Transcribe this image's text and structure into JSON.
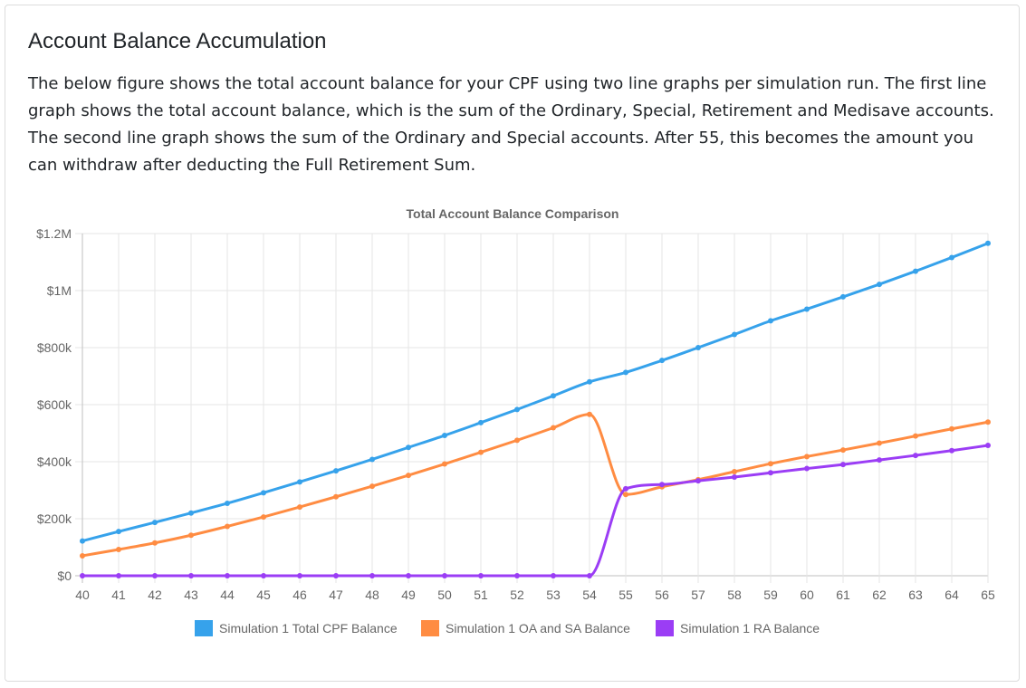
{
  "card": {
    "title": "Account Balance Accumulation",
    "description": "The below figure shows the total account balance for your CPF using two line graphs per simulation run. The first line graph shows the total account balance, which is the sum of the Ordinary, Special, Retirement and Medisave accounts. The second line graph shows the sum of the Ordinary and Special accounts. After 55, this becomes the amount you can withdraw after deducting the Full Retirement Sum."
  },
  "chart_data": {
    "type": "line",
    "title": "Total Account Balance Comparison",
    "xlabel": "",
    "ylabel": "",
    "x": [
      40,
      41,
      42,
      43,
      44,
      45,
      46,
      47,
      48,
      49,
      50,
      51,
      52,
      53,
      54,
      55,
      56,
      57,
      58,
      59,
      60,
      61,
      62,
      63,
      64,
      65
    ],
    "ylim": [
      0,
      1200000
    ],
    "yticks": [
      0,
      200000,
      400000,
      600000,
      800000,
      1000000,
      1200000
    ],
    "ytick_labels": [
      "$0",
      "$200k",
      "$400k",
      "$600k",
      "$800k",
      "$1M",
      "$1.2M"
    ],
    "grid": true,
    "legend_position": "bottom",
    "series": [
      {
        "name": "Simulation 1 Total CPF Balance",
        "color": "#36a2eb",
        "values": [
          122000,
          155000,
          187000,
          220000,
          254000,
          291000,
          329000,
          368000,
          408000,
          450000,
          492000,
          537000,
          583000,
          631000,
          680000,
          713000,
          755000,
          800000,
          846000,
          894000,
          935000,
          978000,
          1022000,
          1068000,
          1116000,
          1166000
        ]
      },
      {
        "name": "Simulation 1 OA and SA Balance",
        "color": "#ff8c42",
        "values": [
          70000,
          92000,
          115000,
          142000,
          173000,
          206000,
          241000,
          277000,
          314000,
          352000,
          392000,
          433000,
          475000,
          519000,
          566000,
          285000,
          312000,
          337000,
          365000,
          393000,
          418000,
          441000,
          465000,
          490000,
          515000,
          539000
        ]
      },
      {
        "name": "Simulation 1 RA Balance",
        "color": "#9b3df5",
        "values": [
          0,
          0,
          0,
          0,
          0,
          0,
          0,
          0,
          0,
          0,
          0,
          0,
          0,
          0,
          0,
          305000,
          320000,
          333000,
          346000,
          361000,
          376000,
          390000,
          406000,
          422000,
          439000,
          457000
        ]
      }
    ]
  }
}
